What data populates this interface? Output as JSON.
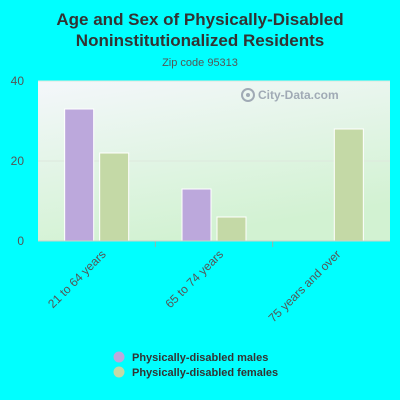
{
  "chart_data": {
    "type": "bar",
    "title_lines": [
      "Age and Sex of Physically-Disabled",
      "Noninstitutionalized Residents"
    ],
    "subtitle": "Zip code 95313",
    "categories": [
      "21 to 64 years",
      "65 to 74 years",
      "75 years and over"
    ],
    "series": [
      {
        "name": "Physically-disabled males",
        "values": [
          33,
          13,
          null
        ],
        "color": "#bca8dc"
      },
      {
        "name": "Physically-disabled females",
        "values": [
          22,
          6,
          28
        ],
        "color": "#c4d9a6"
      }
    ],
    "ylim": [
      0,
      40
    ],
    "yticks": [
      0,
      20,
      40
    ],
    "grid": true,
    "legend_position": "bottom"
  },
  "watermark": "City-Data.com",
  "colors": {
    "background": "#00ffff",
    "plot_top": "#f4f7fb",
    "plot_bottom": "#d2f2d2"
  }
}
